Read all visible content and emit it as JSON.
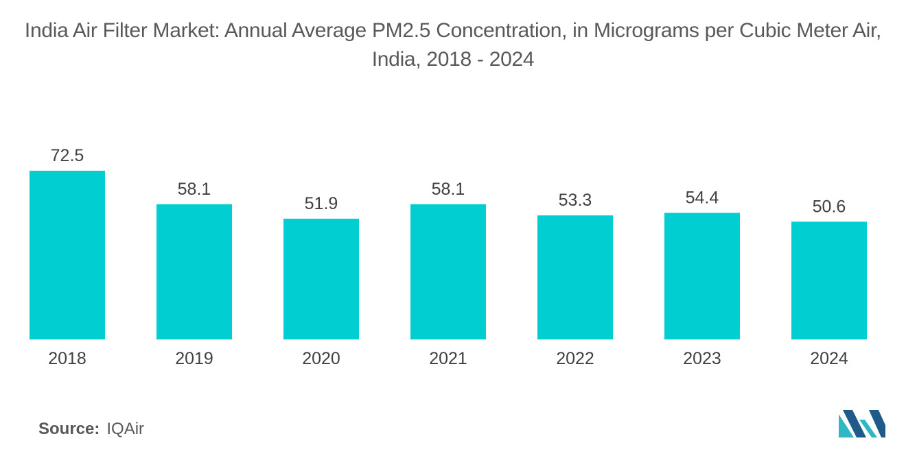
{
  "title": "India Air Filter Market: Annual Average PM2.5 Concentration, in Micrograms per Cubic Meter Air, India, 2018 - 2024",
  "source_label": "Source:",
  "source_value": "IQAir",
  "logo_icon": "mordor-intelligence-logo-icon",
  "colors": {
    "bar": "#00CED1",
    "text": "#404040",
    "logo_blue": "#1F5B8A",
    "logo_teal": "#2FB8C4"
  },
  "chart_data": {
    "type": "bar",
    "title": "India Air Filter Market: Annual Average PM2.5 Concentration, in Micrograms per Cubic Meter Air, India, 2018 - 2024",
    "categories": [
      "2018",
      "2019",
      "2020",
      "2021",
      "2022",
      "2023",
      "2024"
    ],
    "values": [
      72.5,
      58.1,
      51.9,
      58.1,
      53.3,
      54.4,
      50.6
    ],
    "value_labels": [
      "72.5",
      "58.1",
      "51.9",
      "58.1",
      "53.3",
      "54.4",
      "50.6"
    ],
    "xlabel": "",
    "ylabel": "",
    "ylim": [
      0,
      72.5
    ],
    "grid": false,
    "legend": "none"
  }
}
